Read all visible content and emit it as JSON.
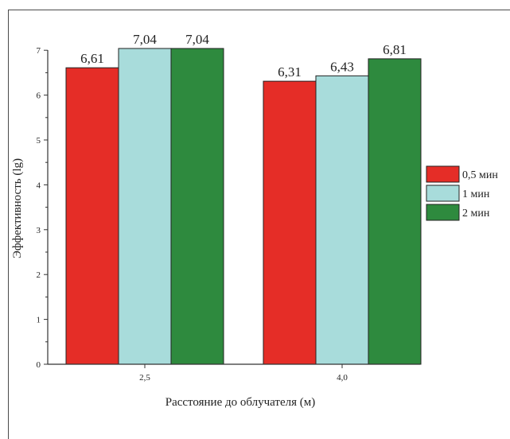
{
  "chart_data": {
    "type": "bar",
    "categories": [
      "2,5",
      "4,0"
    ],
    "series": [
      {
        "name": "0,5 мин",
        "color": "#e52d27",
        "values": [
          6.61,
          6.31
        ],
        "labels": [
          "6,61",
          "6,31"
        ]
      },
      {
        "name": "1 мин",
        "color": "#a8dcdb",
        "values": [
          7.04,
          6.43
        ],
        "labels": [
          "7,04",
          "6,43"
        ]
      },
      {
        "name": "2 мин",
        "color": "#2e8a3e",
        "values": [
          7.04,
          6.81
        ],
        "labels": [
          "7,04",
          "6,81"
        ]
      }
    ],
    "xlabel": "Расстояние до облучателя (м)",
    "ylabel": "Эффективность (lg)",
    "ylim": [
      0,
      7
    ],
    "yticks": [
      "0",
      "1",
      "2",
      "3",
      "4",
      "5",
      "6",
      "7"
    ],
    "legend_position": "right",
    "grid": false,
    "axis_color": "#333333",
    "bar_outline": "#222222"
  }
}
